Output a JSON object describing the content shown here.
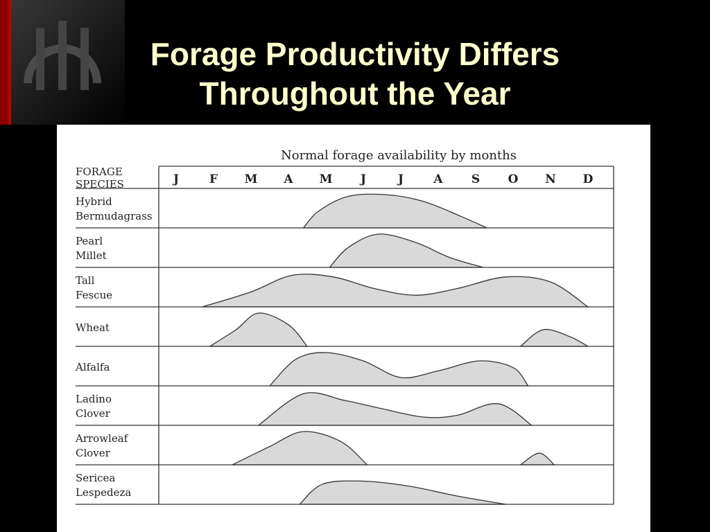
{
  "slide": {
    "title_line1": "Forage Productivity Differs",
    "title_line2": "Throughout the Year",
    "title_color": "#ffffcc",
    "background": "#000000",
    "logo_icon": "columns-arch-logo",
    "accent_color": "#cc0000"
  },
  "chart_data": {
    "type": "area",
    "title": "Normal forage availability by months",
    "header_label_line1": "FORAGE",
    "header_label_line2": "SPECIES",
    "months": [
      "J",
      "F",
      "M",
      "A",
      "M",
      "J",
      "J",
      "A",
      "S",
      "O",
      "N",
      "D"
    ],
    "x_unit": "month",
    "xlim": [
      1,
      12
    ],
    "y_unit": "relative availability",
    "ylim": [
      0,
      1
    ],
    "grid": false,
    "fill_color": "#d9d9d9",
    "species": [
      {
        "label_line1": "Hybrid",
        "label_line2": "Bermudagrass",
        "segments": [
          [
            [
              4.4,
              0
            ],
            [
              4.8,
              0.5
            ],
            [
              5.6,
              0.95
            ],
            [
              6.6,
              1.0
            ],
            [
              7.6,
              0.8
            ],
            [
              8.6,
              0.35
            ],
            [
              9.3,
              0
            ]
          ]
        ]
      },
      {
        "label_line1": "Pearl",
        "label_line2": "Millet",
        "segments": [
          [
            [
              5.1,
              0
            ],
            [
              5.6,
              0.6
            ],
            [
              6.4,
              1.0
            ],
            [
              7.4,
              0.75
            ],
            [
              8.3,
              0.3
            ],
            [
              9.2,
              0
            ]
          ]
        ]
      },
      {
        "label_line1": "Tall",
        "label_line2": "Fescue",
        "segments": [
          [
            [
              1.7,
              0
            ],
            [
              3.0,
              0.45
            ],
            [
              4.1,
              0.95
            ],
            [
              5.2,
              0.9
            ],
            [
              6.3,
              0.55
            ],
            [
              7.4,
              0.35
            ],
            [
              8.5,
              0.55
            ],
            [
              9.8,
              0.9
            ],
            [
              11.0,
              0.75
            ],
            [
              12.0,
              0
            ]
          ]
        ]
      },
      {
        "label_line1": "Wheat",
        "label_line2": "",
        "segments": [
          [
            [
              1.9,
              0
            ],
            [
              2.6,
              0.5
            ],
            [
              3.2,
              1.0
            ],
            [
              4.0,
              0.65
            ],
            [
              4.5,
              0
            ]
          ],
          [
            [
              10.2,
              0
            ],
            [
              10.8,
              0.5
            ],
            [
              11.5,
              0.3
            ],
            [
              12.0,
              0
            ]
          ]
        ]
      },
      {
        "label_line1": "Alfalfa",
        "label_line2": "",
        "segments": [
          [
            [
              3.5,
              0
            ],
            [
              4.2,
              0.8
            ],
            [
              5.0,
              1.0
            ],
            [
              6.0,
              0.75
            ],
            [
              7.0,
              0.25
            ],
            [
              8.0,
              0.45
            ],
            [
              9.1,
              0.75
            ],
            [
              10.0,
              0.55
            ],
            [
              10.4,
              0
            ]
          ]
        ]
      },
      {
        "label_line1": "Ladino",
        "label_line2": "Clover",
        "segments": [
          [
            [
              3.2,
              0
            ],
            [
              4.4,
              0.95
            ],
            [
              5.5,
              0.75
            ],
            [
              6.5,
              0.5
            ],
            [
              7.6,
              0.25
            ],
            [
              8.5,
              0.3
            ],
            [
              9.6,
              0.65
            ],
            [
              10.5,
              0
            ]
          ]
        ]
      },
      {
        "label_line1": "Arrowleaf",
        "label_line2": "Clover",
        "segments": [
          [
            [
              2.5,
              0
            ],
            [
              3.5,
              0.55
            ],
            [
              4.4,
              1.0
            ],
            [
              5.4,
              0.7
            ],
            [
              6.1,
              0
            ]
          ],
          [
            [
              10.2,
              0
            ],
            [
              10.7,
              0.35
            ],
            [
              11.1,
              0
            ]
          ]
        ]
      },
      {
        "label_line1": "Sericea",
        "label_line2": "Lespedeza",
        "segments": [
          [
            [
              4.3,
              0
            ],
            [
              4.9,
              0.6
            ],
            [
              5.9,
              0.7
            ],
            [
              7.2,
              0.55
            ],
            [
              8.5,
              0.25
            ],
            [
              9.8,
              0
            ]
          ]
        ]
      }
    ]
  }
}
